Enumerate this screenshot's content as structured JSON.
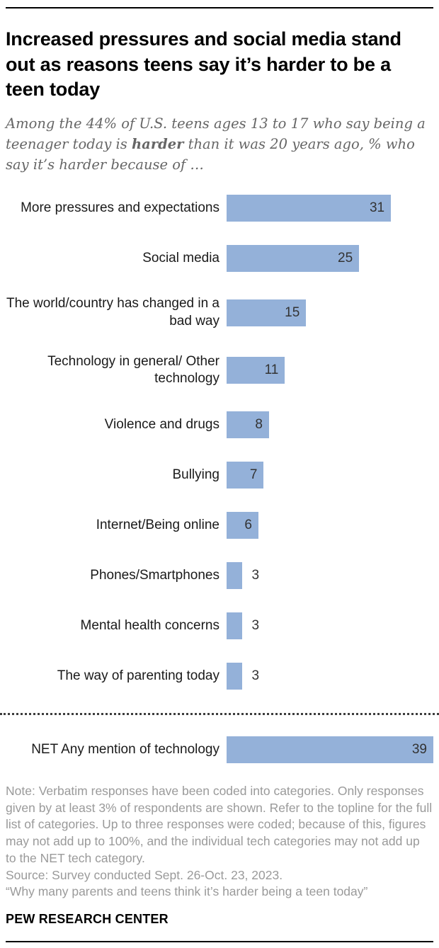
{
  "header": {
    "title": "Increased pressures and social media stand out as reasons teens say it’s harder to be a teen today",
    "subtitle_pre": "Among the 44% of U.S. teens ages 13 to 17 who say being a teenager today is ",
    "subtitle_bold": "harder",
    "subtitle_post": " than it was 20 years ago, % who say it’s harder because of …"
  },
  "chart_data": {
    "type": "bar",
    "orientation": "horizontal",
    "categories": [
      "More pressures and expectations",
      "Social media",
      "The world/country has changed in a bad way",
      "Technology in general/ Other technology",
      "Violence and drugs",
      "Bullying",
      "Internet/Being online",
      "Phones/Smartphones",
      "Mental health concerns",
      "The way of parenting today"
    ],
    "values": [
      31,
      25,
      15,
      11,
      8,
      7,
      6,
      3,
      3,
      3
    ],
    "net_category": "NET Any mention of technology",
    "net_value": 39,
    "xlim": [
      0,
      39
    ],
    "bar_color": "#94b1d9",
    "value_labels_shown": true,
    "grid": false,
    "legend": "none"
  },
  "notes": {
    "note": "Note: Verbatim responses have been coded into categories. Only responses given by at least 3% of respondents are shown. Refer to the topline for the full list of categories. Up to three responses were coded; because of this, figures may not add up to 100%, and the individual tech categories may not add up to the NET tech category.",
    "source": "Source: Survey conducted Sept. 26-Oct. 23, 2023.",
    "quote": "“Why many parents and teens think it’s harder being a teen today”"
  },
  "brand": "PEW RESEARCH CENTER"
}
